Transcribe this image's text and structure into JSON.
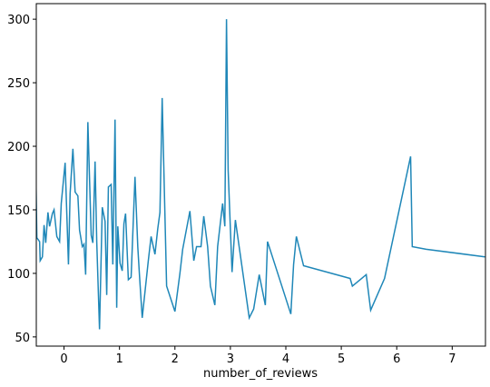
{
  "chart_data": {
    "type": "line",
    "x_label": "number_of_reviews",
    "x": [
      -0.51,
      -0.49,
      -0.44,
      -0.43,
      -0.39,
      -0.36,
      -0.33,
      -0.29,
      -0.26,
      -0.21,
      -0.18,
      -0.13,
      -0.08,
      -0.05,
      0.02,
      0.08,
      0.11,
      0.16,
      0.2,
      0.25,
      0.28,
      0.33,
      0.36,
      0.39,
      0.43,
      0.49,
      0.52,
      0.56,
      0.59,
      0.64,
      0.69,
      0.74,
      0.77,
      0.8,
      0.85,
      0.88,
      0.92,
      0.95,
      0.97,
      1.01,
      1.05,
      1.08,
      1.11,
      1.16,
      1.21,
      1.28,
      1.33,
      1.36,
      1.41,
      1.52,
      1.57,
      1.64,
      1.69,
      1.73,
      1.77,
      1.85,
      2.0,
      2.09,
      2.14,
      2.27,
      2.34,
      2.39,
      2.47,
      2.52,
      2.59,
      2.64,
      2.72,
      2.77,
      2.86,
      2.9,
      2.93,
      2.96,
      3.03,
      3.09,
      3.34,
      3.42,
      3.52,
      3.63,
      3.67,
      4.09,
      4.14,
      4.19,
      4.32,
      5.16,
      5.2,
      5.45,
      5.53,
      5.78,
      6.25,
      6.28,
      6.53,
      7.59
    ],
    "series": [
      {
        "color": "#1f87b8",
        "values": [
          184,
          128,
          125,
          110,
          113,
          138,
          124,
          148,
          137,
          147,
          150,
          129,
          125,
          155,
          187,
          107,
          163,
          198,
          164,
          161,
          134,
          121,
          123,
          99,
          219,
          130,
          124,
          188,
          125,
          56,
          152,
          141,
          83,
          168,
          170,
          107,
          221,
          73,
          137,
          108,
          102,
          139,
          147,
          95,
          97,
          176,
          121,
          99,
          65,
          110,
          129,
          115,
          135,
          148,
          238,
          90,
          70,
          100,
          119,
          149,
          110,
          121,
          121,
          145,
          121,
          90,
          75,
          121,
          155,
          137,
          300,
          181,
          101,
          142,
          65,
          72,
          99,
          75,
          125,
          68,
          107,
          129,
          106,
          96,
          90,
          99,
          71,
          96,
          192,
          121,
          119,
          113
        ]
      }
    ],
    "xlim": [
      -0.5,
      7.6
    ],
    "ylim": [
      42.75,
      312.25
    ],
    "xticks": [
      0,
      1,
      2,
      3,
      4,
      5,
      6,
      7
    ],
    "yticks": [
      50,
      100,
      150,
      200,
      250,
      300
    ]
  }
}
